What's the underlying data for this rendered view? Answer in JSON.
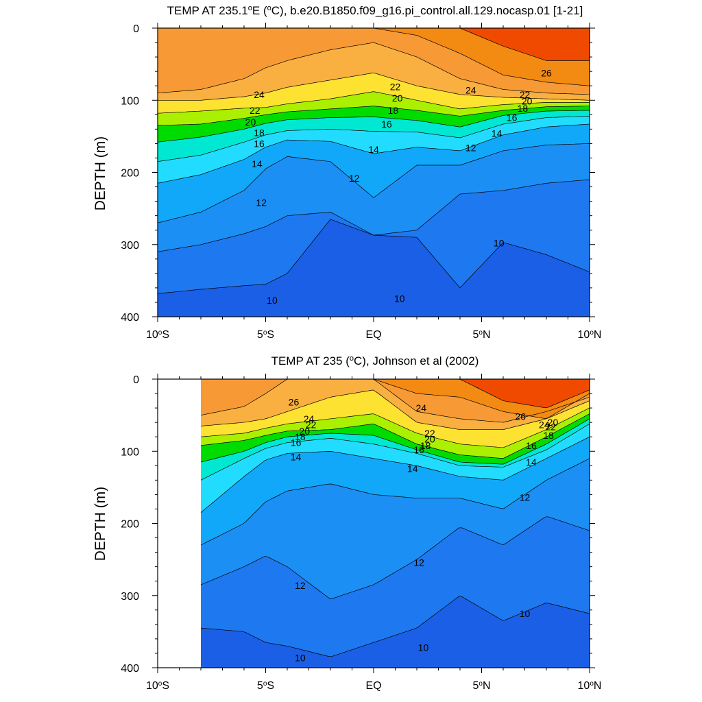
{
  "chart_data": [
    {
      "type": "contour",
      "title": "TEMP AT 235.1°E (°C), b.e20.B1850.f09_g16.pi_control.all.129.nocasp.01 [1-21]",
      "title_parts": {
        "pre": "TEMP AT 235.1",
        "deg1": "o",
        "mid": "E (",
        "deg2": "o",
        "post": "C), b.e20.B1850.f09_g16.pi_control.all.129.nocasp.01 [1-21]"
      },
      "ylabel": "DEPTH (m)",
      "xlabel": "",
      "xlim": [
        -10,
        10
      ],
      "ylim": [
        0,
        400
      ],
      "y_reversed": true,
      "data_xlim": [
        -10,
        10
      ],
      "x_ticks": [
        {
          "v": -10,
          "n": "10",
          "s": "S"
        },
        {
          "v": -5,
          "n": "5",
          "s": "S"
        },
        {
          "v": 0,
          "n": "EQ",
          "s": ""
        },
        {
          "v": 5,
          "n": "5",
          "s": "N"
        },
        {
          "v": 10,
          "n": "10",
          "s": "N"
        }
      ],
      "y_ticks": [
        "0",
        "100",
        "200",
        "300",
        "400"
      ],
      "y_tick_values": [
        0,
        100,
        200,
        300,
        400
      ],
      "levels": [
        10,
        11,
        12,
        13,
        14,
        15,
        16,
        17,
        18,
        19,
        20,
        21,
        22,
        23,
        24,
        25,
        26,
        27
      ],
      "isotherm_depths": {
        "x": [
          -10,
          -8,
          -6,
          -5,
          -4,
          -2,
          0,
          2,
          4,
          6,
          8,
          10
        ],
        "T27": [
          0,
          0,
          0,
          0,
          0,
          0,
          0,
          0,
          0,
          25,
          45,
          45
        ],
        "T26": [
          0,
          0,
          0,
          0,
          0,
          0,
          0,
          10,
          35,
          65,
          75,
          80
        ],
        "T25": [
          90,
          85,
          70,
          55,
          45,
          30,
          20,
          40,
          70,
          85,
          90,
          92
        ],
        "T24": [
          100,
          100,
          95,
          90,
          82,
          72,
          62,
          80,
          92,
          96,
          98,
          100
        ],
        "T22": [
          118,
          115,
          111,
          110,
          105,
          98,
          88,
          100,
          112,
          106,
          103,
          103
        ],
        "T20": [
          135,
          133,
          125,
          120,
          116,
          112,
          108,
          114,
          122,
          114,
          109,
          108
        ],
        "T18": [
          158,
          151,
          140,
          132,
          127,
          124,
          123,
          128,
          137,
          121,
          115,
          114
        ],
        "T16": [
          185,
          176,
          158,
          148,
          142,
          140,
          143,
          144,
          152,
          133,
          124,
          122
        ],
        "T14": [
          215,
          203,
          182,
          165,
          155,
          157,
          174,
          165,
          170,
          148,
          137,
          133
        ],
        "T12": [
          270,
          255,
          225,
          195,
          178,
          185,
          235,
          190,
          190,
          170,
          162,
          160
        ],
        "T11": [
          310,
          300,
          285,
          275,
          260,
          255,
          287,
          280,
          230,
          225,
          215,
          210
        ],
        "T10": [
          368,
          362,
          357,
          355,
          340,
          265,
          287,
          290,
          360,
          297,
          314,
          338
        ]
      },
      "contour_labels": [
        {
          "text": "24",
          "x": -5.3,
          "y": 92
        },
        {
          "text": "22",
          "x": -5.5,
          "y": 114
        },
        {
          "text": "20",
          "x": -5.7,
          "y": 130
        },
        {
          "text": "18",
          "x": -5.3,
          "y": 145
        },
        {
          "text": "16",
          "x": -5.3,
          "y": 160
        },
        {
          "text": "14",
          "x": -5.4,
          "y": 188
        },
        {
          "text": "12",
          "x": -5.2,
          "y": 242
        },
        {
          "text": "12",
          "x": -0.9,
          "y": 208
        },
        {
          "text": "22",
          "x": 1.0,
          "y": 81
        },
        {
          "text": "20",
          "x": 1.1,
          "y": 97
        },
        {
          "text": "18",
          "x": 0.9,
          "y": 114
        },
        {
          "text": "16",
          "x": 0.6,
          "y": 133
        },
        {
          "text": "14",
          "x": 0.0,
          "y": 168
        },
        {
          "text": "24",
          "x": 4.5,
          "y": 86
        },
        {
          "text": "26",
          "x": 8.0,
          "y": 62
        },
        {
          "text": "22",
          "x": 7.0,
          "y": 92
        },
        {
          "text": "20",
          "x": 7.1,
          "y": 101
        },
        {
          "text": "18",
          "x": 6.9,
          "y": 111
        },
        {
          "text": "16",
          "x": 6.4,
          "y": 124
        },
        {
          "text": "14",
          "x": 5.7,
          "y": 146
        },
        {
          "text": "12",
          "x": 4.5,
          "y": 166
        },
        {
          "text": "10",
          "x": 5.8,
          "y": 298
        },
        {
          "text": "10",
          "x": -4.7,
          "y": 377
        },
        {
          "text": "10",
          "x": 1.2,
          "y": 375
        }
      ]
    },
    {
      "type": "contour",
      "title": "TEMP AT 235 (°C), Johnson et al (2002)",
      "title_parts": {
        "pre": "TEMP AT 235 (",
        "deg1": "o",
        "mid": "C), Johnson et al (2002)",
        "deg2": "",
        "post": ""
      },
      "ylabel": "DEPTH (m)",
      "xlabel": "",
      "xlim": [
        -10,
        10
      ],
      "ylim": [
        0,
        400
      ],
      "y_reversed": true,
      "data_xlim": [
        -8,
        10
      ],
      "x_ticks": [
        {
          "v": -10,
          "n": "10",
          "s": "S"
        },
        {
          "v": -5,
          "n": "5",
          "s": "S"
        },
        {
          "v": 0,
          "n": "EQ",
          "s": ""
        },
        {
          "v": 5,
          "n": "5",
          "s": "N"
        },
        {
          "v": 10,
          "n": "10",
          "s": "N"
        }
      ],
      "y_ticks": [
        "0",
        "100",
        "200",
        "300",
        "400"
      ],
      "y_tick_values": [
        0,
        100,
        200,
        300,
        400
      ],
      "levels": [
        10,
        11,
        12,
        13,
        14,
        15,
        16,
        17,
        18,
        19,
        20,
        21,
        22,
        23,
        24,
        25,
        26,
        27
      ],
      "isotherm_depths": {
        "x": [
          -8,
          -6,
          -5,
          -4,
          -2,
          0,
          2,
          4,
          6,
          8,
          10
        ],
        "T27": [
          0,
          0,
          0,
          0,
          0,
          0,
          0,
          0,
          30,
          40,
          15
        ],
        "T26": [
          0,
          0,
          0,
          0,
          0,
          0,
          20,
          25,
          45,
          55,
          20
        ],
        "T25": [
          50,
          38,
          20,
          0,
          0,
          0,
          45,
          55,
          60,
          45,
          25
        ],
        "T24": [
          65,
          60,
          55,
          45,
          25,
          15,
          60,
          70,
          70,
          55,
          30
        ],
        "T22": [
          80,
          75,
          68,
          62,
          55,
          48,
          75,
          90,
          95,
          70,
          40
        ],
        "T20": [
          92,
          85,
          78,
          72,
          70,
          62,
          90,
          105,
          110,
          80,
          48
        ],
        "T18": [
          115,
          100,
          88,
          80,
          75,
          78,
          98,
          115,
          118,
          90,
          55
        ],
        "T16": [
          140,
          110,
          96,
          88,
          82,
          90,
          103,
          120,
          122,
          98,
          62
        ],
        "T14": [
          185,
          135,
          112,
          103,
          100,
          110,
          120,
          135,
          140,
          110,
          80
        ],
        "T12": [
          230,
          200,
          170,
          155,
          145,
          160,
          165,
          165,
          180,
          140,
          110
        ],
        "T11": [
          285,
          260,
          245,
          260,
          305,
          285,
          250,
          205,
          230,
          190,
          210
        ],
        "T10": [
          345,
          350,
          365,
          370,
          385,
          365,
          345,
          300,
          335,
          310,
          325
        ]
      },
      "contour_labels": [
        {
          "text": "26",
          "x": -3.7,
          "y": 32
        },
        {
          "text": "24",
          "x": -3.0,
          "y": 55
        },
        {
          "text": "22",
          "x": -2.9,
          "y": 63
        },
        {
          "text": "20",
          "x": -3.2,
          "y": 72
        },
        {
          "text": "18",
          "x": -3.4,
          "y": 80
        },
        {
          "text": "16",
          "x": -3.6,
          "y": 88
        },
        {
          "text": "14",
          "x": -3.6,
          "y": 108
        },
        {
          "text": "24",
          "x": 2.2,
          "y": 40
        },
        {
          "text": "22",
          "x": 2.6,
          "y": 75
        },
        {
          "text": "20",
          "x": 2.6,
          "y": 83
        },
        {
          "text": "18",
          "x": 2.4,
          "y": 92
        },
        {
          "text": "16",
          "x": 2.1,
          "y": 98
        },
        {
          "text": "14",
          "x": 1.8,
          "y": 124
        },
        {
          "text": "26",
          "x": 6.8,
          "y": 52
        },
        {
          "text": "24",
          "x": 7.9,
          "y": 63
        },
        {
          "text": "22",
          "x": 8.2,
          "y": 66
        },
        {
          "text": "20",
          "x": 8.3,
          "y": 60
        },
        {
          "text": "18",
          "x": 8.1,
          "y": 78
        },
        {
          "text": "16",
          "x": 7.3,
          "y": 92
        },
        {
          "text": "14",
          "x": 7.3,
          "y": 115
        },
        {
          "text": "12",
          "x": 7.0,
          "y": 164
        },
        {
          "text": "12",
          "x": 2.1,
          "y": 254
        },
        {
          "text": "12",
          "x": -3.4,
          "y": 286
        },
        {
          "text": "10",
          "x": 7.0,
          "y": 325
        },
        {
          "text": "10",
          "x": 2.3,
          "y": 372
        },
        {
          "text": "10",
          "x": -3.4,
          "y": 386
        }
      ]
    }
  ],
  "fill_colors": {
    "below_10": "#1a5fe6",
    "10": "#1e78f0",
    "11": "#1c8ff5",
    "12": "#11a8fa",
    "13": "#00c3fc",
    "14": "#22dcff",
    "15": "#33f0ff",
    "16": "#00e8d2",
    "17": "#00dca0",
    "18": "#00dc00",
    "19": "#44e600",
    "20": "#aaf000",
    "21": "#f0f000",
    "22": "#fde232",
    "23": "#fdc83c",
    "24": "#f9b040",
    "25": "#f79a35",
    "26": "#f38a12",
    "27": "#f04a00"
  }
}
